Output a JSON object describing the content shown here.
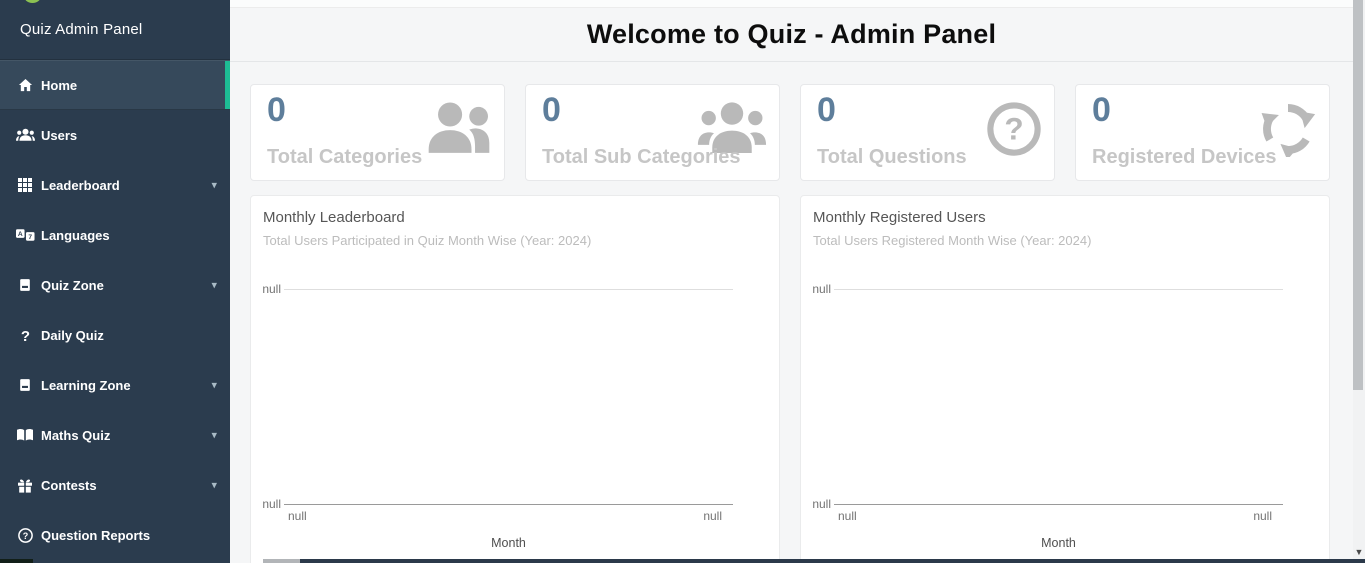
{
  "app": {
    "window_title": "Quiz Admin Panel"
  },
  "colors": {
    "sidebar_bg": "#2b3c4e",
    "sidebar_active_bg": "#36495b",
    "accent_teal": "#1dbc94",
    "stat_value_blue": "#5e7e9b",
    "muted_label_gray": "#c6c6c6",
    "icon_gray": "#b9b9b9"
  },
  "sidebar": {
    "title": "Quiz Admin Panel",
    "items": [
      {
        "label": "Home",
        "icon": "home-icon",
        "active": true,
        "has_submenu": false
      },
      {
        "label": "Users",
        "icon": "users-icon",
        "active": false,
        "has_submenu": false
      },
      {
        "label": "Leaderboard",
        "icon": "grid-icon",
        "active": false,
        "has_submenu": true
      },
      {
        "label": "Languages",
        "icon": "language-icon",
        "active": false,
        "has_submenu": false
      },
      {
        "label": "Quiz Zone",
        "icon": "book-icon",
        "active": false,
        "has_submenu": true
      },
      {
        "label": "Daily Quiz",
        "icon": "question-icon",
        "active": false,
        "has_submenu": false
      },
      {
        "label": "Learning Zone",
        "icon": "book-icon",
        "active": false,
        "has_submenu": true
      },
      {
        "label": "Maths Quiz",
        "icon": "open-book-icon",
        "active": false,
        "has_submenu": true
      },
      {
        "label": "Contests",
        "icon": "gift-icon",
        "active": false,
        "has_submenu": true
      },
      {
        "label": "Question Reports",
        "icon": "question-circle-icon",
        "active": false,
        "has_submenu": false
      }
    ]
  },
  "header": {
    "title": "Welcome to Quiz - Admin Panel"
  },
  "stats": [
    {
      "value": "0",
      "label": "Total Categories",
      "icon": "users-two-icon"
    },
    {
      "value": "0",
      "label": "Total Sub Categories",
      "icon": "users-group-icon"
    },
    {
      "value": "0",
      "label": "Total Questions",
      "icon": "question-circle-icon"
    },
    {
      "value": "0",
      "label": "Registered Devices",
      "icon": "recycle-icon"
    }
  ],
  "chart_data": [
    {
      "type": "line",
      "title": "Monthly Leaderboard",
      "subtitle": "Total Users Participated in Quiz Month Wise (Year: 2024)",
      "xlabel": "Month",
      "ylabel": "",
      "x_tick_labels": [
        "null",
        "null"
      ],
      "y_tick_labels": [
        "null",
        "null"
      ],
      "series": [],
      "values": [],
      "grid": true,
      "legend": "none"
    },
    {
      "type": "line",
      "title": "Monthly Registered Users",
      "subtitle": "Total Users Registered Month Wise (Year: 2024)",
      "xlabel": "Month",
      "ylabel": "",
      "x_tick_labels": [
        "null",
        "null"
      ],
      "y_tick_labels": [
        "null",
        "null"
      ],
      "series": [],
      "values": [],
      "grid": true,
      "legend": "none"
    }
  ],
  "scrollbar": {
    "down_arrow": "▼"
  },
  "caret_glyph": "▾"
}
